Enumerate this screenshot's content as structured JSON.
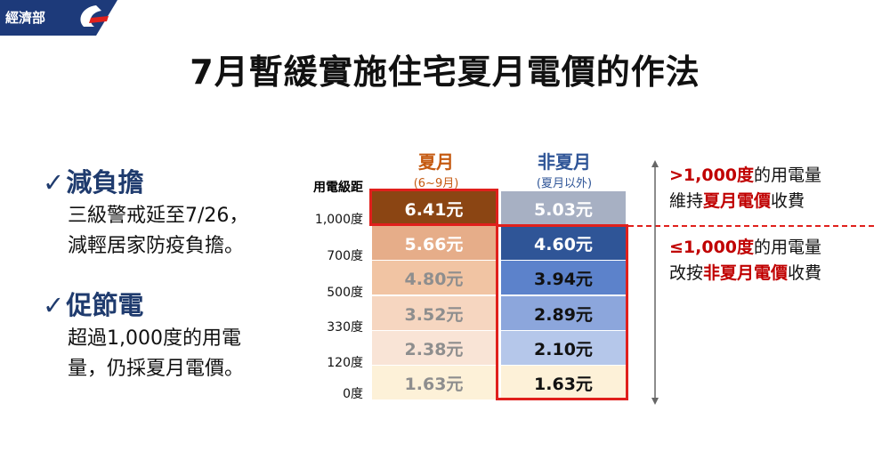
{
  "logo": {
    "text": "經濟部"
  },
  "title": "7月暫緩實施住宅夏月電價的作法",
  "bullets": [
    {
      "heading": "減負擔",
      "lines": [
        "三級警戒延至7/26，",
        "減輕居家防疫負擔。"
      ]
    },
    {
      "heading": "促節電",
      "lines": [
        "超過1,000度的用電",
        "量，仍採夏月電價。"
      ]
    }
  ],
  "check_glyph": "✓",
  "table": {
    "row_header": "用電級距",
    "summer": {
      "label": "夏月",
      "sub": "(6~9月)"
    },
    "nonsummer": {
      "label": "非夏月",
      "sub": "(夏月以外)"
    },
    "row_labels": [
      "1,000度",
      "700度",
      "500度",
      "330度",
      "120度",
      "0度"
    ],
    "summer_values": [
      "6.41元",
      "5.66元",
      "4.80元",
      "3.52元",
      "2.38元",
      "1.63元"
    ],
    "nonsummer_values": [
      "5.03元",
      "4.60元",
      "3.94元",
      "2.89元",
      "2.10元",
      "1.63元"
    ],
    "summer_colors": [
      "#8b4513",
      "#e6ad89",
      "#f1c4a3",
      "#f6d6c0",
      "#f9e4d6",
      "#fdf1d8"
    ],
    "summer_text_colors": [
      "#ffffff",
      "#ffffff",
      "#8e8e8e",
      "#8e8e8e",
      "#8e8e8e",
      "#8e8e8e"
    ],
    "nonsummer_colors": [
      "#a7b0c3",
      "#2f5597",
      "#5c82cb",
      "#8ca6dc",
      "#b5c7ea",
      "#fdf1d8"
    ],
    "nonsummer_text_colors": [
      "#ffffff",
      "#ffffff",
      "#111111",
      "#111111",
      "#111111",
      "#111111"
    ],
    "summer_label_color": "#c55a11",
    "nonsummer_label_color": "#2f5597"
  },
  "annotations": {
    "top": {
      "part1": ">1,000度",
      "part2": "的用電量",
      "part3": "維持",
      "part4": "夏月電價",
      "part5": "收費"
    },
    "bottom": {
      "part1": "≤1,000度",
      "part2": "的用電量",
      "part3": "改按",
      "part4": "非夏月電價",
      "part5": "收費"
    }
  }
}
